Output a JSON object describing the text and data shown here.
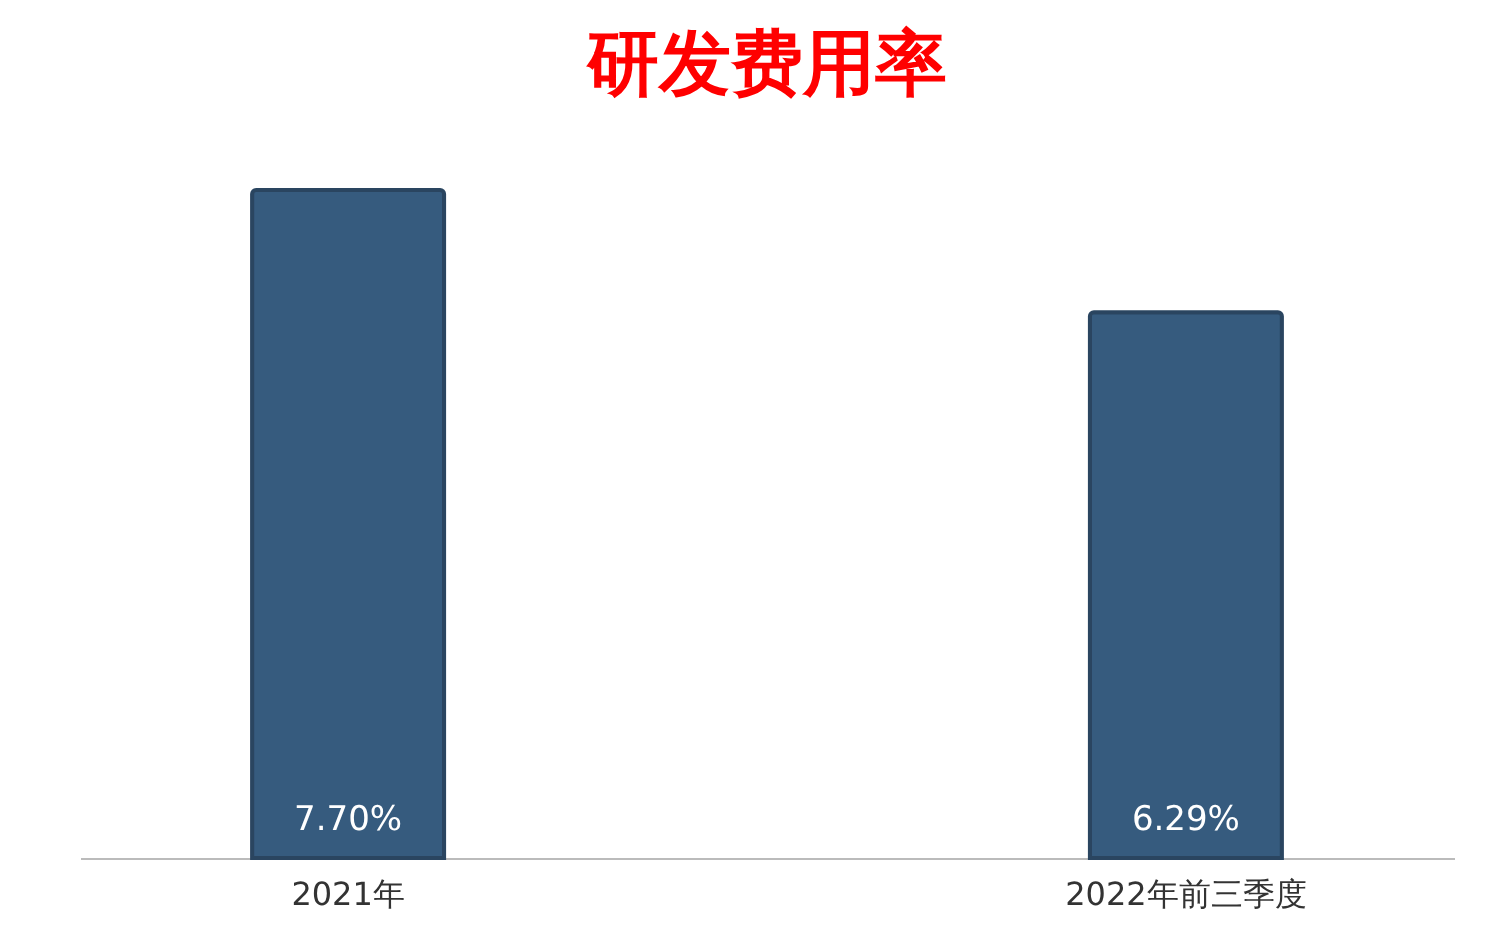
{
  "chart_data": {
    "type": "bar",
    "title": "研发费用率",
    "categories": [
      "2021年",
      "2022年前三季度"
    ],
    "values": [
      7.7,
      6.29
    ],
    "value_labels": [
      "7.70%",
      "6.29%"
    ],
    "color": "#365b7e",
    "grid": false
  }
}
